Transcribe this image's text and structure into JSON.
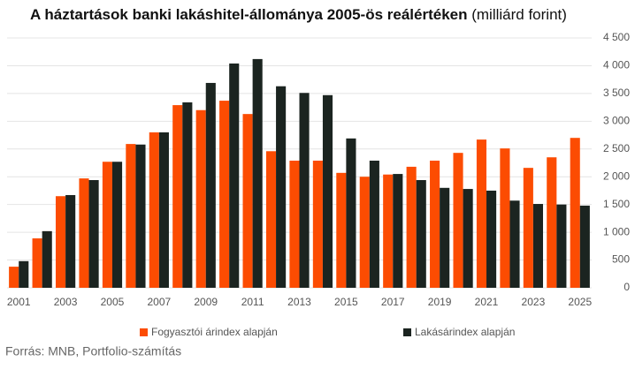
{
  "chart_data": {
    "type": "bar",
    "title": "A háztartások banki lakáshitel-állománya 2005-ös reálértéken",
    "units": "(milliárd forint)",
    "categories": [
      "2001",
      null,
      "2003",
      null,
      "2005",
      null,
      "2007",
      null,
      "2009",
      null,
      "2011",
      null,
      "2013",
      null,
      "2015",
      null,
      "2017",
      null,
      "2019",
      null,
      "2021",
      null,
      "2023",
      null,
      "2025"
    ],
    "series": [
      {
        "name": "Fogyasztói árindex alapján",
        "color": "#fc4c02",
        "values": [
          380,
          890,
          1650,
          1970,
          2270,
          2590,
          2800,
          3290,
          3200,
          3370,
          3130,
          2460,
          2290,
          2290,
          2070,
          2000,
          2040,
          2180,
          2290,
          2430,
          2670,
          2510,
          2160,
          2350,
          2700
        ]
      },
      {
        "name": "Lakásárindex alapján",
        "color": "#1b2420",
        "values": [
          480,
          1020,
          1670,
          1940,
          2270,
          2580,
          2800,
          3340,
          3690,
          4040,
          4120,
          3630,
          3510,
          3470,
          2690,
          2290,
          2050,
          1940,
          1800,
          1780,
          1750,
          1570,
          1510,
          1500,
          1480
        ]
      }
    ],
    "ylim": [
      0,
      4500
    ],
    "yticks": [
      0,
      500,
      {
        "value": 1000,
        "label": "1 000"
      },
      {
        "value": 1500,
        "label": "1 500"
      },
      {
        "value": 2000,
        "label": "2 000"
      },
      {
        "value": 2500,
        "label": "2 500"
      },
      {
        "value": 3000,
        "label": "3 000"
      },
      {
        "value": 3500,
        "label": "3 500"
      },
      {
        "value": 4000,
        "label": "4 000"
      },
      {
        "value": 4500,
        "label": "4 500"
      }
    ],
    "grid": true,
    "legend": "bottom",
    "source": "Forrás: MNB, Portfolio-számítás"
  }
}
